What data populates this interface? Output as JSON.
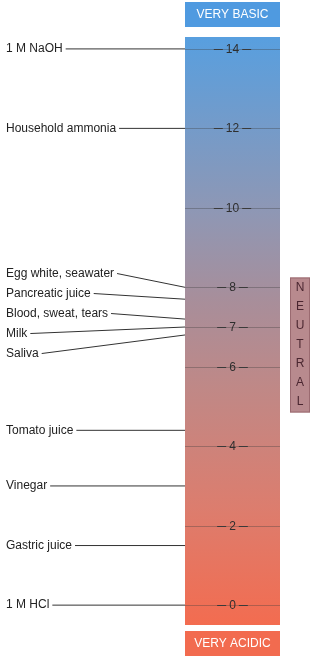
{
  "chart_data": {
    "type": "scale",
    "annotations": {
      "top": "VERY BASIC",
      "bottom": "VERY ACIDIC",
      "side": "NEUTRAL"
    },
    "categories": [
      "1 M NaOH",
      "Household ammonia",
      "Egg white, seawater",
      "Pancreatic juice",
      "Blood, sweat, tears",
      "Milk",
      "Saliva",
      "Tomato juice",
      "Vinegar",
      "Gastric juice",
      "1 M HCl"
    ],
    "values": [
      14,
      12,
      8,
      7.7,
      7.2,
      7.0,
      6.8,
      4.4,
      3.0,
      1.5,
      0
    ],
    "ylim": [
      -0.5,
      14.3
    ],
    "yticks": [
      0,
      2,
      4,
      6,
      7,
      8,
      10,
      12,
      14
    ],
    "grid": true
  }
}
